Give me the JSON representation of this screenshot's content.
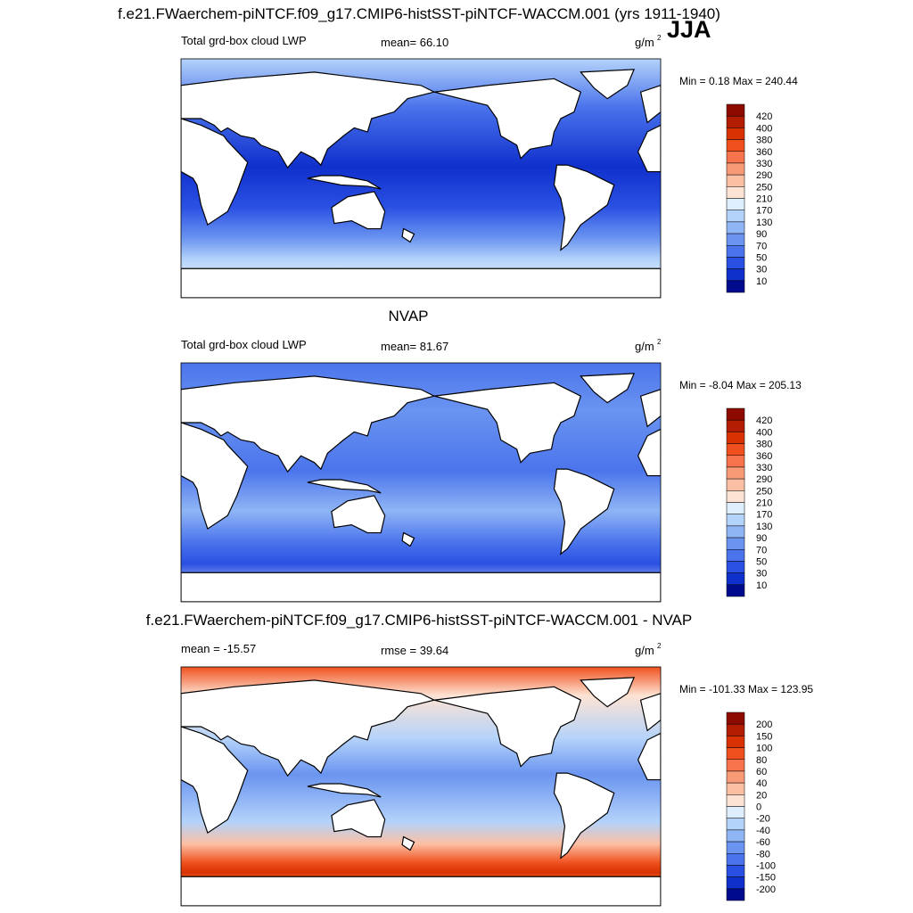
{
  "header": {
    "title": "f.e21.FWaerchem-piNTCF.f09_g17.CMIP6-histSST-piNTCF-WACCM.001 (yrs 1911-1940)",
    "season": "JJA"
  },
  "panels": [
    {
      "left": "Total grd-box cloud LWP",
      "center": "mean=  66.10",
      "unit": "g/m",
      "unit_sup": "2",
      "minmax": "Min =   0.18 Max = 240.44",
      "colorbar": {
        "labels": [
          420,
          400,
          380,
          360,
          330,
          290,
          250,
          210,
          170,
          130,
          90,
          70,
          50,
          30,
          10
        ],
        "colors": [
          "#8c0a00",
          "#b21c00",
          "#d83200",
          "#f0501e",
          "#f7734b",
          "#f99a77",
          "#fbc0a4",
          "#fde3d3",
          "#deeefc",
          "#b4d3fa",
          "#8fb5f5",
          "#6a94f0",
          "#4b74ec",
          "#2a50e3",
          "#1030cc",
          "#000a8c"
        ]
      }
    },
    {
      "title": "NVAP",
      "left": "Total grd-box cloud LWP",
      "center": "mean=  81.67",
      "unit": "g/m",
      "unit_sup": "2",
      "minmax": "Min =  -8.04 Max = 205.13",
      "colorbar": {
        "labels": [
          420,
          400,
          380,
          360,
          330,
          290,
          250,
          210,
          170,
          130,
          90,
          70,
          50,
          30,
          10
        ],
        "colors": [
          "#8c0a00",
          "#b21c00",
          "#d83200",
          "#f0501e",
          "#f7734b",
          "#f99a77",
          "#fbc0a4",
          "#fde3d3",
          "#deeefc",
          "#b4d3fa",
          "#8fb5f5",
          "#6a94f0",
          "#4b74ec",
          "#2a50e3",
          "#1030cc",
          "#000a8c"
        ]
      }
    },
    {
      "title": "f.e21.FWaerchem-piNTCF.f09_g17.CMIP6-histSST-piNTCF-WACCM.001 - NVAP",
      "left": "mean = -15.57",
      "center": "rmse =  39.64",
      "unit": "g/m",
      "unit_sup": "2",
      "minmax": "Min = -101.33 Max = 123.95",
      "colorbar": {
        "labels": [
          200,
          150,
          100,
          80,
          60,
          40,
          20,
          0,
          -20,
          -40,
          -60,
          -80,
          -100,
          -150,
          -200
        ],
        "colors": [
          "#8c0a00",
          "#b21c00",
          "#d83200",
          "#f0501e",
          "#f7734b",
          "#f99a77",
          "#fbc0a4",
          "#fde3d3",
          "#deeefc",
          "#b4d3fa",
          "#8fb5f5",
          "#6a94f0",
          "#4b74ec",
          "#2a50e3",
          "#1030cc",
          "#000a8c"
        ]
      }
    }
  ]
}
